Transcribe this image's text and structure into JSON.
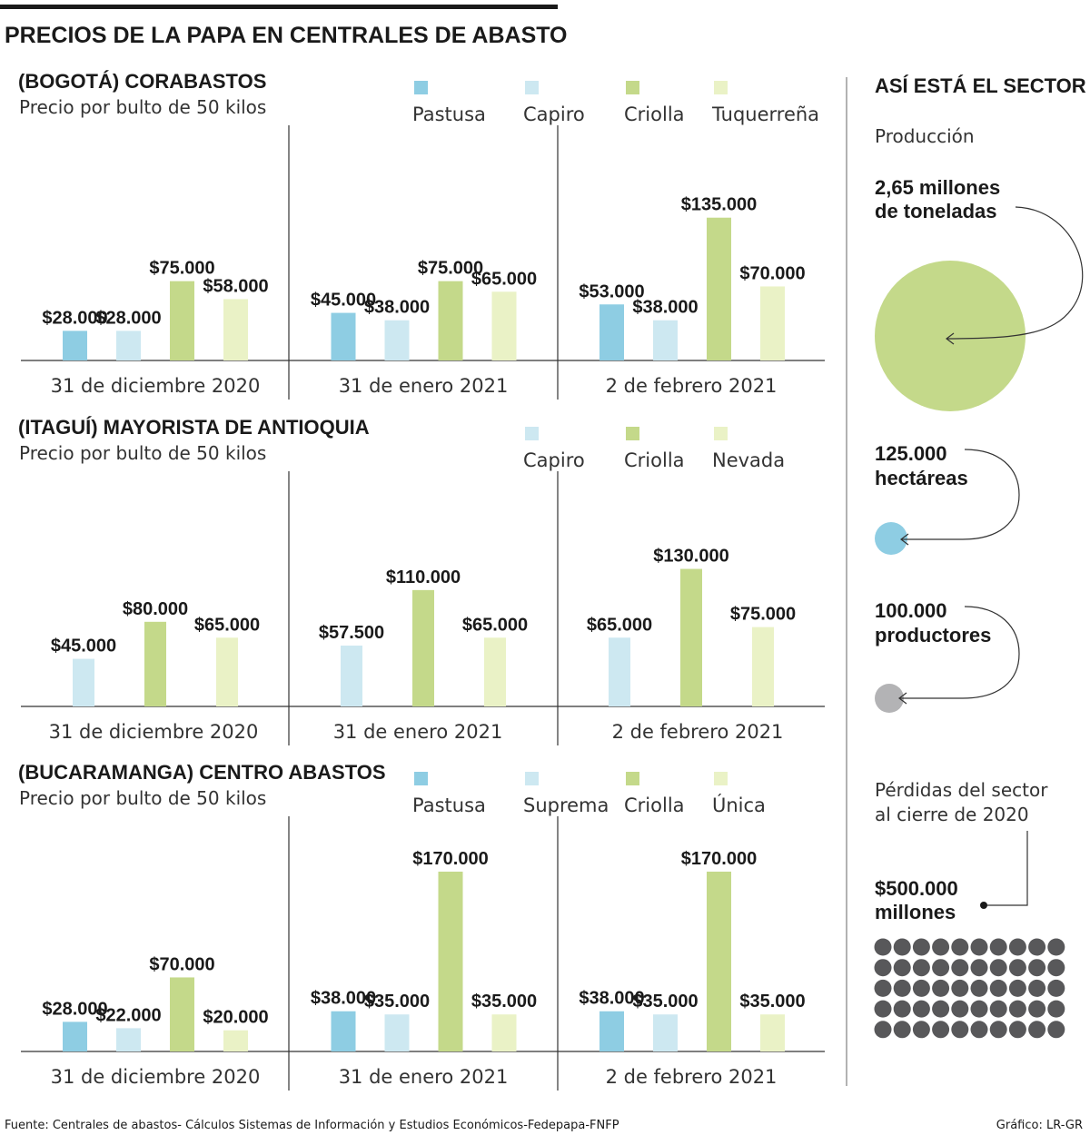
{
  "title": "PRECIOS DE LA PAPA EN CENTRALES DE ABASTO",
  "colors": {
    "Pastusa": "#8ecde3",
    "Capiro": "#cde8f1",
    "Suprema": "#cde8f1",
    "Criolla": "#c4d98a",
    "Tuquerreña": "#eaf2c6",
    "Nevada": "#eaf2c6",
    "Única": "#eaf2c6",
    "produccion": "#c4d98a",
    "hectareas": "#8ecde3",
    "productores": "#b3b3b5",
    "perdidas": "#58585a"
  },
  "chart_data": [
    {
      "type": "bar",
      "title": "(BOGOTÁ) CORABASTOS",
      "subtitle": "Precio por bulto de 50 kilos",
      "categories": [
        "31 de diciembre 2020",
        "31 de enero 2021",
        "2 de febrero 2021"
      ],
      "series": [
        {
          "name": "Pastusa",
          "values": [
            28000,
            45000,
            53000
          ]
        },
        {
          "name": "Capiro",
          "values": [
            28000,
            38000,
            38000
          ]
        },
        {
          "name": "Criolla",
          "values": [
            75000,
            75000,
            135000
          ]
        },
        {
          "name": "Tuquerreña",
          "values": [
            58000,
            65000,
            70000
          ]
        }
      ],
      "legend": "top-right"
    },
    {
      "type": "bar",
      "title": "(ITAGUÍ) MAYORISTA DE ANTIOQUIA",
      "subtitle": "Precio por bulto de 50 kilos",
      "categories": [
        "31 de diciembre 2020",
        "31 de enero 2021",
        "2 de febrero 2021"
      ],
      "series": [
        {
          "name": "Capiro",
          "values": [
            45000,
            57500,
            65000
          ]
        },
        {
          "name": "Criolla",
          "values": [
            80000,
            110000,
            130000
          ]
        },
        {
          "name": "Nevada",
          "values": [
            65000,
            65000,
            75000
          ]
        }
      ],
      "legend": "top-right"
    },
    {
      "type": "bar",
      "title": "(BUCARAMANGA) CENTRO ABASTOS",
      "subtitle": "Precio por bulto de 50 kilos",
      "categories": [
        "31 de diciembre 2020",
        "31 de enero 2021",
        "2 de febrero 2021"
      ],
      "series": [
        {
          "name": "Pastusa",
          "values": [
            28000,
            38000,
            38000
          ]
        },
        {
          "name": "Suprema",
          "values": [
            22000,
            35000,
            35000
          ]
        },
        {
          "name": "Criolla",
          "values": [
            70000,
            170000,
            170000
          ]
        },
        {
          "name": "Única",
          "values": [
            20000,
            35000,
            35000
          ]
        }
      ],
      "legend": "top-right"
    }
  ],
  "sidebar": {
    "title": "ASÍ ESTÁ EL SECTOR",
    "production_label": "Producción",
    "production_value_1": "2,65 millones",
    "production_value_2": "de toneladas",
    "hectares_1": "125.000",
    "hectares_2": "hectáreas",
    "producers_1": "100.000",
    "producers_2": "productores",
    "losses_label_1": "Pérdidas del sector",
    "losses_label_2": "al cierre de 2020",
    "losses_value_1": "$500.000",
    "losses_value_2": "millones"
  },
  "footer": {
    "source": "Fuente: Centrales de abastos- Cálculos Sistemas de Información y Estudios Económicos-Fedepapa-FNFP",
    "credit": "Gráfico: LR-GR"
  }
}
